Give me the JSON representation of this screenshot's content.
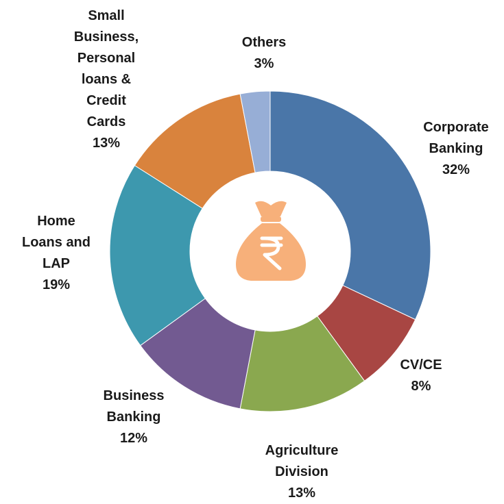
{
  "chart_data": {
    "type": "donut",
    "categories": [
      "Corporate Banking",
      "CV/CE",
      "Agriculture Division",
      "Business Banking",
      "Home Loans and LAP",
      "Small Business, Personal loans & Credit Cards",
      "Others"
    ],
    "values": [
      32,
      8,
      13,
      12,
      19,
      13,
      3
    ],
    "value_labels": [
      "32%",
      "8%",
      "13%",
      "12%",
      "19%",
      "13%",
      "3%"
    ],
    "colors": [
      "#4a76a8",
      "#a84643",
      "#8aa84f",
      "#725a91",
      "#3d98ae",
      "#d9833d",
      "#97aed6"
    ]
  }
}
